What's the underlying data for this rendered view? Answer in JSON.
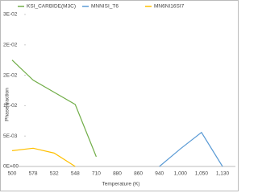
{
  "chart_data": {
    "type": "line",
    "x_label": "Temperature (K)",
    "y_label": "Phase fraction",
    "categories": [
      "500",
      "578",
      "532",
      "548",
      "710",
      "880",
      "860",
      "940",
      "1,000",
      "1,050",
      "1,130"
    ],
    "series": [
      {
        "name": "KSI_CARBIDE(M3C)",
        "color": "#70ad47",
        "values": [
          0.0175,
          0.0142,
          0.0122,
          0.0102,
          0.0016,
          null,
          null,
          null,
          null,
          null,
          null
        ]
      },
      {
        "name": "MNNISI_T6",
        "color": "#5b9bd5",
        "values": [
          null,
          null,
          null,
          null,
          null,
          null,
          null,
          0,
          0.0029,
          0.0056,
          0
        ]
      },
      {
        "name": "MN6NI16SI7",
        "color": "#ffc000",
        "values": [
          0.0026,
          0.003,
          0.0022,
          0,
          null,
          null,
          null,
          null,
          null,
          null,
          null
        ]
      }
    ],
    "ylim": [
      0,
      0.025
    ],
    "yticks": [
      {
        "value": 0,
        "label": "0E+00"
      },
      {
        "value": 0.005,
        "label": "5E-03"
      },
      {
        "value": 0.01,
        "label": "1E-02"
      },
      {
        "value": 0.015,
        "label": "2E-02"
      },
      {
        "value": 0.02,
        "label": "2E-02"
      },
      {
        "value": 0.025,
        "label": "3E-02"
      }
    ],
    "legend": "top"
  }
}
